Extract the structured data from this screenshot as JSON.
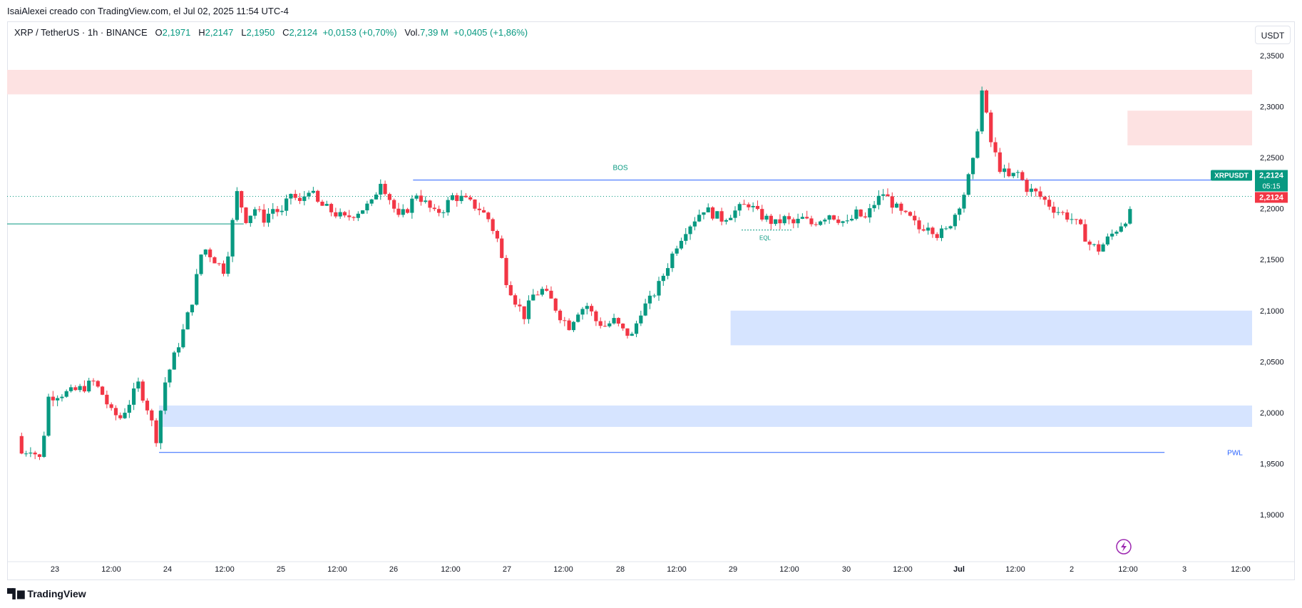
{
  "header": {
    "attribution": "IsaiAlexei creado con TradingView.com, el Jul 02, 2025 11:54 UTC-4"
  },
  "legend": {
    "symbol": "XRP / TetherUS · 1h · BINANCE",
    "open_label": "O",
    "open": "2,1971",
    "high_label": "H",
    "high": "2,2147",
    "low_label": "L",
    "low": "2,1950",
    "close_label": "C",
    "close": "2,2124",
    "change": "+0,0153 (+0,70%)",
    "vol_label": "Vol.",
    "vol": "7,39 M",
    "vol_change": "+0,0405 (+1,86%)"
  },
  "currency_button": "USDT",
  "price_badge": {
    "symbol": "XRPUSDT",
    "price": "2,2124",
    "countdown": "05:15",
    "open_price": "2,2124"
  },
  "footer": {
    "brand": "TradingView"
  },
  "colors": {
    "up": "#089981",
    "down": "#f23645",
    "demand_zone": "#d6e4ff",
    "supply_zone": "#fde2e2",
    "level_line": "#2962ff",
    "fvg_up": "#a6f2c9"
  },
  "chart_data": {
    "type": "candlestick",
    "ylim": [
      1.87,
      2.36
    ],
    "y_ticks": [
      2.35,
      2.3,
      2.25,
      2.2,
      2.15,
      2.1,
      2.05,
      2.0,
      1.95,
      1.9
    ],
    "y_tick_labels": [
      "2,3500",
      "2,3000",
      "2,2500",
      "2,2000",
      "2,1500",
      "2,1000",
      "2,0500",
      "2,0000",
      "1,9500",
      "1,9000"
    ],
    "x_ticks": [
      "23",
      "12:00",
      "24",
      "12:00",
      "25",
      "12:00",
      "26",
      "12:00",
      "27",
      "12:00",
      "28",
      "12:00",
      "29",
      "12:00",
      "30",
      "12:00",
      "Jul",
      "12:00",
      "2",
      "12:00",
      "3",
      "12:00"
    ],
    "x_range_hours": [
      -9,
      223
    ],
    "candles_close_path": [
      [
        -9,
        1.977
      ],
      [
        -8,
        1.96
      ],
      [
        -6,
        1.965
      ],
      [
        -4,
        1.955
      ],
      [
        -3,
        1.98
      ],
      [
        -2,
        2.015
      ],
      [
        0,
        2.018
      ],
      [
        3,
        2.02
      ],
      [
        6,
        2.025
      ],
      [
        8,
        2.03
      ],
      [
        10,
        2.018
      ],
      [
        12,
        2.0
      ],
      [
        14,
        1.995
      ],
      [
        16,
        2.01
      ],
      [
        18,
        2.028
      ],
      [
        20,
        2.005
      ],
      [
        21,
        1.99
      ],
      [
        22,
        1.975
      ],
      [
        24,
        2.03
      ],
      [
        26,
        2.055
      ],
      [
        28,
        2.08
      ],
      [
        30,
        2.11
      ],
      [
        32,
        2.155
      ],
      [
        33,
        2.16
      ],
      [
        35,
        2.15
      ],
      [
        37,
        2.14
      ],
      [
        38,
        2.158
      ],
      [
        40,
        2.215
      ],
      [
        42,
        2.19
      ],
      [
        44,
        2.2
      ],
      [
        46,
        2.19
      ],
      [
        48,
        2.2
      ],
      [
        50,
        2.195
      ],
      [
        52,
        2.215
      ],
      [
        54,
        2.205
      ],
      [
        56,
        2.22
      ],
      [
        58,
        2.205
      ],
      [
        60,
        2.2
      ],
      [
        62,
        2.195
      ],
      [
        64,
        2.19
      ],
      [
        66,
        2.195
      ],
      [
        68,
        2.2
      ],
      [
        70,
        2.205
      ],
      [
        72,
        2.228
      ],
      [
        74,
        2.21
      ],
      [
        76,
        2.19
      ],
      [
        78,
        2.2
      ],
      [
        80,
        2.215
      ],
      [
        82,
        2.205
      ],
      [
        84,
        2.195
      ],
      [
        86,
        2.2
      ],
      [
        88,
        2.212
      ],
      [
        90,
        2.21
      ],
      [
        92,
        2.205
      ],
      [
        94,
        2.2
      ],
      [
        96,
        2.19
      ],
      [
        98,
        2.17
      ],
      [
        100,
        2.13
      ],
      [
        102,
        2.11
      ],
      [
        104,
        2.095
      ],
      [
        106,
        2.115
      ],
      [
        108,
        2.12
      ],
      [
        110,
        2.11
      ],
      [
        112,
        2.095
      ],
      [
        114,
        2.085
      ],
      [
        116,
        2.1
      ],
      [
        118,
        2.105
      ],
      [
        120,
        2.09
      ],
      [
        122,
        2.085
      ],
      [
        124,
        2.09
      ],
      [
        126,
        2.08
      ],
      [
        128,
        2.075
      ],
      [
        130,
        2.1
      ],
      [
        132,
        2.11
      ],
      [
        134,
        2.125
      ],
      [
        136,
        2.145
      ],
      [
        138,
        2.165
      ],
      [
        140,
        2.18
      ],
      [
        142,
        2.19
      ],
      [
        144,
        2.2
      ],
      [
        146,
        2.195
      ],
      [
        148,
        2.19
      ],
      [
        150,
        2.195
      ],
      [
        152,
        2.2
      ],
      [
        154,
        2.205
      ],
      [
        156,
        2.195
      ],
      [
        158,
        2.19
      ],
      [
        160,
        2.185
      ],
      [
        162,
        2.19
      ],
      [
        164,
        2.185
      ],
      [
        166,
        2.19
      ],
      [
        168,
        2.185
      ],
      [
        170,
        2.19
      ],
      [
        172,
        2.195
      ],
      [
        174,
        2.19
      ],
      [
        176,
        2.185
      ],
      [
        178,
        2.195
      ],
      [
        180,
        2.19
      ],
      [
        182,
        2.205
      ],
      [
        184,
        2.215
      ],
      [
        186,
        2.205
      ],
      [
        188,
        2.195
      ],
      [
        190,
        2.19
      ],
      [
        192,
        2.18
      ],
      [
        194,
        2.185
      ],
      [
        196,
        2.175
      ],
      [
        198,
        2.178
      ],
      [
        200,
        2.195
      ],
      [
        202,
        2.215
      ],
      [
        204,
        2.245
      ],
      [
        206,
        2.315
      ],
      [
        207,
        2.29
      ],
      [
        208,
        2.265
      ],
      [
        210,
        2.24
      ],
      [
        212,
        2.23
      ],
      [
        214,
        2.235
      ],
      [
        216,
        2.22
      ],
      [
        218,
        2.215
      ],
      [
        220,
        2.208
      ],
      [
        222,
        2.2
      ],
      [
        224,
        2.195
      ],
      [
        226,
        2.19
      ],
      [
        228,
        2.18
      ],
      [
        230,
        2.165
      ],
      [
        232,
        2.16
      ],
      [
        234,
        2.17
      ],
      [
        236,
        2.18
      ],
      [
        238,
        2.19
      ],
      [
        240,
        2.2
      ],
      [
        242,
        2.195
      ],
      [
        244,
        2.19
      ],
      [
        246,
        2.182
      ],
      [
        248,
        2.185
      ],
      [
        250,
        2.212
      ]
    ],
    "zones": [
      {
        "kind": "supply",
        "y_top": 2.336,
        "y_bottom": 2.312,
        "x_start": -9,
        "x_end": 223
      },
      {
        "kind": "supply",
        "y_top": 2.296,
        "y_bottom": 2.262,
        "x_start": 207,
        "x_end": 223
      },
      {
        "kind": "demand",
        "y_top": 2.1,
        "y_bottom": 2.066,
        "x_start": 132,
        "x_end": 223
      },
      {
        "kind": "demand",
        "y_top": 2.007,
        "y_bottom": 1.986,
        "x_start": 24,
        "x_end": 223
      },
      {
        "kind": "demand",
        "y_top": 2.175,
        "y_bottom": 2.167,
        "x_start": 246,
        "x_end": 223
      }
    ],
    "levels": [
      {
        "label": "BOS",
        "y": 2.228,
        "x_start": 72,
        "x_end": 223,
        "color": "#2962ff"
      },
      {
        "label": "PWL",
        "y": 1.961,
        "x_start": 24,
        "x_end": 214,
        "color": "#2962ff"
      },
      {
        "label": "",
        "y": 2.185,
        "x_start": -9,
        "x_end": 40,
        "color": "#089981"
      }
    ],
    "eql": {
      "label": "EQL",
      "y": 2.179
    }
  }
}
